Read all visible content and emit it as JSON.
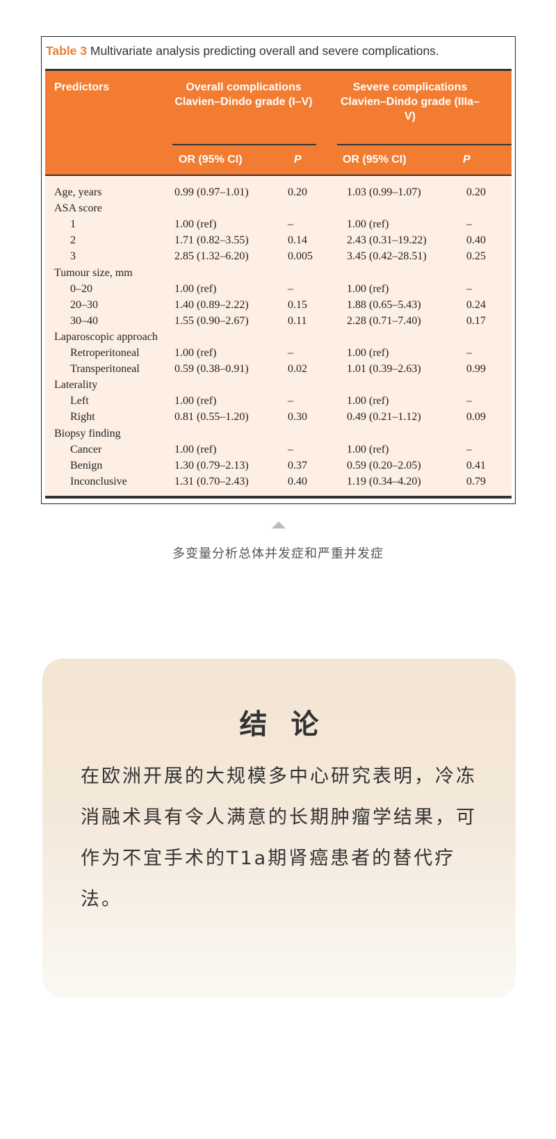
{
  "table": {
    "label": "Table 3",
    "title": "Multivariate analysis predicting overall and severe complications.",
    "headers": {
      "predictors": "Predictors",
      "overall": "Overall complications Clavien–Dindo grade (I–V)",
      "severe": "Severe complications Clavien–Dindo grade (IIIa–V)",
      "or1": "OR (95% CI)",
      "p1": "P",
      "or2": "OR (95% CI)",
      "p2": "P"
    },
    "rows": [
      {
        "label": "Age, years",
        "indent": false,
        "or1": "0.99 (0.97–1.01)",
        "p1": "0.20",
        "or2": "1.03 (0.99–1.07)",
        "p2": "0.20"
      },
      {
        "label": "ASA score",
        "indent": false,
        "or1": "",
        "p1": "",
        "or2": "",
        "p2": ""
      },
      {
        "label": "1",
        "indent": true,
        "or1": "1.00 (ref)",
        "p1": "–",
        "or2": "1.00 (ref)",
        "p2": "–"
      },
      {
        "label": "2",
        "indent": true,
        "or1": "1.71 (0.82–3.55)",
        "p1": "0.14",
        "or2": "2.43 (0.31–19.22)",
        "p2": "0.40"
      },
      {
        "label": "3",
        "indent": true,
        "or1": "2.85 (1.32–6.20)",
        "p1": "0.005",
        "or2": "3.45 (0.42–28.51)",
        "p2": "0.25"
      },
      {
        "label": "Tumour size, mm",
        "indent": false,
        "or1": "",
        "p1": "",
        "or2": "",
        "p2": ""
      },
      {
        "label": "0–20",
        "indent": true,
        "or1": "1.00 (ref)",
        "p1": "–",
        "or2": "1.00 (ref)",
        "p2": "–"
      },
      {
        "label": "20–30",
        "indent": true,
        "or1": "1.40 (0.89–2.22)",
        "p1": "0.15",
        "or2": "1.88 (0.65–5.43)",
        "p2": "0.24"
      },
      {
        "label": "30–40",
        "indent": true,
        "or1": "1.55 (0.90–2.67)",
        "p1": "0.11",
        "or2": "2.28 (0.71–7.40)",
        "p2": "0.17"
      },
      {
        "label": "Laparoscopic approach",
        "indent": false,
        "or1": "",
        "p1": "",
        "or2": "",
        "p2": ""
      },
      {
        "label": "Retroperitoneal",
        "indent": true,
        "or1": "1.00 (ref)",
        "p1": "–",
        "or2": "1.00 (ref)",
        "p2": "–"
      },
      {
        "label": "Transperitoneal",
        "indent": true,
        "or1": "0.59 (0.38–0.91)",
        "p1": "0.02",
        "or2": "1.01 (0.39–2.63)",
        "p2": "0.99"
      },
      {
        "label": "Laterality",
        "indent": false,
        "or1": "",
        "p1": "",
        "or2": "",
        "p2": ""
      },
      {
        "label": "Left",
        "indent": true,
        "or1": "1.00 (ref)",
        "p1": "–",
        "or2": "1.00 (ref)",
        "p2": "–"
      },
      {
        "label": "Right",
        "indent": true,
        "or1": "0.81 (0.55–1.20)",
        "p1": "0.30",
        "or2": "0.49 (0.21–1.12)",
        "p2": "0.09"
      },
      {
        "label": "Biopsy finding",
        "indent": false,
        "or1": "",
        "p1": "",
        "or2": "",
        "p2": ""
      },
      {
        "label": "Cancer",
        "indent": true,
        "or1": "1.00 (ref)",
        "p1": "–",
        "or2": "1.00 (ref)",
        "p2": "–"
      },
      {
        "label": "Benign",
        "indent": true,
        "or1": "1.30 (0.79–2.13)",
        "p1": "0.37",
        "or2": "0.59 (0.20–2.05)",
        "p2": "0.41"
      },
      {
        "label": "Inconclusive",
        "indent": true,
        "or1": "1.31 (0.70–2.43)",
        "p1": "0.40",
        "or2": "1.19 (0.34–4.20)",
        "p2": "0.79"
      }
    ],
    "header_color": "#f27d32"
  },
  "caption": {
    "icon": "triangle-up-icon",
    "text": "多变量分析总体并发症和严重并发症"
  },
  "conclusion": {
    "title": "结论",
    "body": "在欧洲开展的大规模多中心研究表明，冷冻消融术具有令人满意的长期肿瘤学结果，可作为不宜手术的T1a期肾癌患者的替代疗法。"
  }
}
